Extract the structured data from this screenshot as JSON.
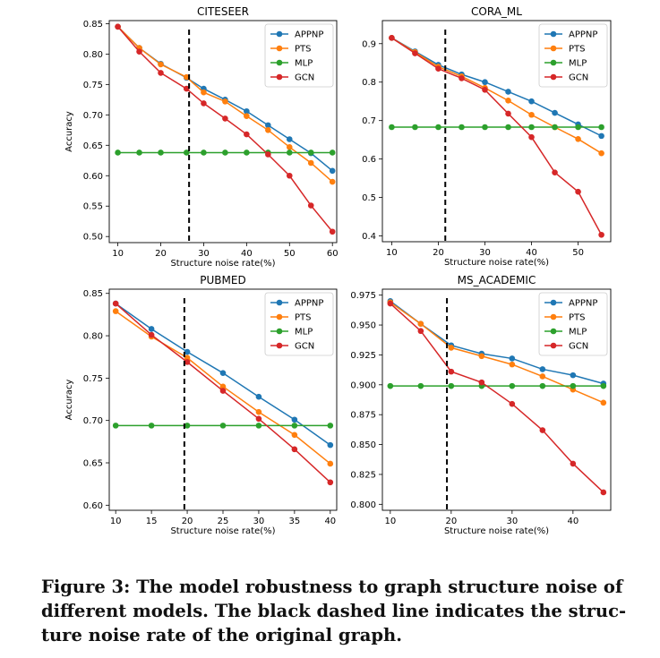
{
  "colors": {
    "APPNP": "#1f77b4",
    "PTS": "#ff7f0e",
    "MLP": "#2ca02c",
    "GCN": "#d62728"
  },
  "chart_data": [
    {
      "type": "line",
      "title": "CITESEER",
      "xlabel": "Structure noise rate(%)",
      "ylabel": "Accuracy",
      "xlim": [
        8,
        61
      ],
      "ylim": [
        0.49,
        0.855
      ],
      "xticks": [
        10,
        20,
        30,
        40,
        50,
        60
      ],
      "xtick_labels": [
        "10",
        "20",
        "30",
        "40",
        "50",
        "60"
      ],
      "yticks": [
        0.5,
        0.55,
        0.6,
        0.65,
        0.7,
        0.75,
        0.8,
        0.85
      ],
      "ytick_labels": [
        "0.50",
        "0.55",
        "0.60",
        "0.65",
        "0.70",
        "0.75",
        "0.80",
        "0.85"
      ],
      "dashed_x": 26.6,
      "x": [
        10,
        15,
        20,
        26,
        30,
        35,
        40,
        45,
        50,
        55,
        60
      ],
      "series": [
        {
          "name": "APPNP",
          "values": [
            0.845,
            0.81,
            0.784,
            0.761,
            0.743,
            0.725,
            0.706,
            0.683,
            0.66,
            0.637,
            0.608
          ]
        },
        {
          "name": "PTS",
          "values": [
            0.845,
            0.81,
            0.783,
            0.762,
            0.737,
            0.722,
            0.698,
            0.675,
            0.647,
            0.621,
            0.59
          ]
        },
        {
          "name": "MLP",
          "values": [
            0.638,
            0.638,
            0.638,
            0.638,
            0.638,
            0.638,
            0.638,
            0.638,
            0.638,
            0.638,
            0.638
          ]
        },
        {
          "name": "GCN",
          "values": [
            0.845,
            0.804,
            0.769,
            0.743,
            0.719,
            0.694,
            0.668,
            0.635,
            0.6,
            0.551,
            0.508
          ]
        }
      ]
    },
    {
      "type": "line",
      "title": "CORA_ML",
      "xlabel": "Structure noise rate(%)",
      "ylabel": "",
      "xlim": [
        8,
        57
      ],
      "ylim": [
        0.385,
        0.96
      ],
      "xticks": [
        10,
        20,
        30,
        40,
        50
      ],
      "xtick_labels": [
        "10",
        "20",
        "30",
        "40",
        "50"
      ],
      "yticks": [
        0.4,
        0.5,
        0.6,
        0.7,
        0.8,
        0.9
      ],
      "ytick_labels": [
        "0.4",
        "0.5",
        "0.6",
        "0.7",
        "0.8",
        "0.9"
      ],
      "dashed_x": 21.5,
      "x": [
        10,
        15,
        20,
        25,
        30,
        35,
        40,
        45,
        50,
        55
      ],
      "series": [
        {
          "name": "APPNP",
          "values": [
            0.915,
            0.88,
            0.845,
            0.82,
            0.8,
            0.775,
            0.75,
            0.72,
            0.69,
            0.66
          ]
        },
        {
          "name": "PTS",
          "values": [
            0.915,
            0.878,
            0.84,
            0.815,
            0.785,
            0.752,
            0.715,
            0.683,
            0.652,
            0.615
          ]
        },
        {
          "name": "MLP",
          "values": [
            0.683,
            0.683,
            0.683,
            0.683,
            0.683,
            0.683,
            0.683,
            0.683,
            0.683,
            0.683
          ]
        },
        {
          "name": "GCN",
          "values": [
            0.915,
            0.875,
            0.835,
            0.81,
            0.78,
            0.718,
            0.657,
            0.565,
            0.515,
            0.403
          ]
        }
      ]
    },
    {
      "type": "line",
      "title": "PUBMED",
      "xlabel": "Structure noise rate(%)",
      "ylabel": "Accuracy",
      "xlim": [
        9.1,
        40.9
      ],
      "ylim": [
        0.594,
        0.855
      ],
      "xticks": [
        10,
        15,
        20,
        25,
        30,
        35,
        40
      ],
      "xtick_labels": [
        "10",
        "15",
        "20",
        "25",
        "30",
        "35",
        "40"
      ],
      "yticks": [
        0.6,
        0.65,
        0.7,
        0.75,
        0.8,
        0.85
      ],
      "ytick_labels": [
        "0.60",
        "0.65",
        "0.70",
        "0.75",
        "0.80",
        "0.85"
      ],
      "dashed_x": 19.6,
      "x": [
        10,
        15,
        20,
        25,
        30,
        35,
        40
      ],
      "series": [
        {
          "name": "APPNP",
          "values": [
            0.838,
            0.808,
            0.781,
            0.756,
            0.728,
            0.701,
            0.671
          ]
        },
        {
          "name": "PTS",
          "values": [
            0.829,
            0.799,
            0.774,
            0.74,
            0.71,
            0.683,
            0.649
          ]
        },
        {
          "name": "MLP",
          "values": [
            0.694,
            0.694,
            0.694,
            0.694,
            0.694,
            0.694,
            0.694
          ]
        },
        {
          "name": "GCN",
          "values": [
            0.838,
            0.801,
            0.769,
            0.735,
            0.702,
            0.666,
            0.627
          ]
        }
      ]
    },
    {
      "type": "line",
      "title": "MS_ACADEMIC",
      "xlabel": "Structure noise rate(%)",
      "ylabel": "",
      "xlim": [
        8.7,
        46.2
      ],
      "ylim": [
        0.795,
        0.98
      ],
      "xticks": [
        10,
        20,
        30,
        40
      ],
      "xtick_labels": [
        "10",
        "20",
        "30",
        "40"
      ],
      "yticks": [
        0.8,
        0.825,
        0.85,
        0.875,
        0.9,
        0.925,
        0.95,
        0.975
      ],
      "ytick_labels": [
        "0.800",
        "0.825",
        "0.850",
        "0.875",
        "0.900",
        "0.925",
        "0.950",
        "0.975"
      ],
      "dashed_x": 19.3,
      "x": [
        10,
        15,
        20,
        25,
        30,
        35,
        40,
        45
      ],
      "series": [
        {
          "name": "APPNP",
          "values": [
            0.97,
            0.951,
            0.933,
            0.926,
            0.922,
            0.913,
            0.908,
            0.901
          ]
        },
        {
          "name": "PTS",
          "values": [
            0.969,
            0.951,
            0.931,
            0.924,
            0.917,
            0.907,
            0.896,
            0.885
          ]
        },
        {
          "name": "MLP",
          "values": [
            0.899,
            0.899,
            0.899,
            0.899,
            0.899,
            0.899,
            0.899,
            0.899
          ]
        },
        {
          "name": "GCN",
          "values": [
            0.968,
            0.945,
            0.911,
            0.902,
            0.884,
            0.862,
            0.834,
            0.81
          ]
        }
      ]
    }
  ],
  "caption": {
    "line1": "Figure 3: The model robustness to graph structure noise of",
    "line2": "different models. The black dashed line indicates the struc-",
    "line3": "ture noise rate of the original graph."
  }
}
